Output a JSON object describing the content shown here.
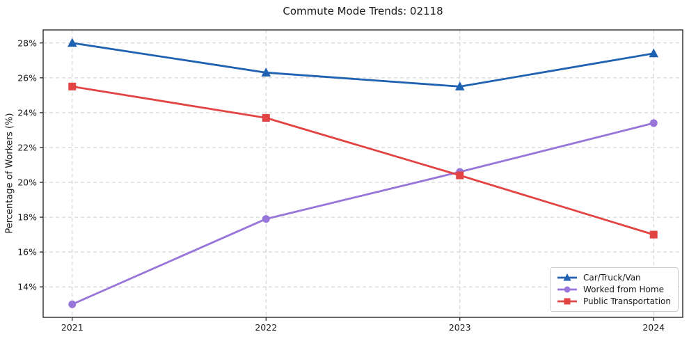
{
  "chart_data": {
    "type": "line",
    "title": "Commute Mode Trends: 02118",
    "xlabel": "",
    "ylabel": "Percentage of Workers (%)",
    "categories": [
      2021,
      2022,
      2023,
      2024
    ],
    "x_tick_labels": [
      "2021",
      "2022",
      "2023",
      "2024"
    ],
    "series": [
      {
        "name": "Car/Truck/Van",
        "marker": "triangle",
        "color": "#2062b2",
        "values": [
          28.0,
          26.3,
          25.5,
          27.4
        ]
      },
      {
        "name": "Worked from Home",
        "marker": "circle",
        "color": "#9775d9",
        "values": [
          13.0,
          17.9,
          20.6,
          23.4
        ]
      },
      {
        "name": "Public Transportation",
        "marker": "square",
        "color": "#e24444",
        "values": [
          25.5,
          23.7,
          20.4,
          17.0
        ]
      }
    ],
    "y_ticks": [
      14,
      16,
      18,
      20,
      22,
      24,
      26,
      28
    ],
    "y_tick_suffix": "%",
    "ylim": [
      12.25,
      28.75
    ],
    "xlim": [
      2020.85,
      2024.15
    ],
    "grid": true,
    "grid_style": "dashed",
    "legend_position": "lower right"
  },
  "style": {
    "grid_color": "#cccccc",
    "spine_color": "#1a1a1a",
    "tick_color": "#1a1a1a",
    "background_color": "#ffffff"
  }
}
